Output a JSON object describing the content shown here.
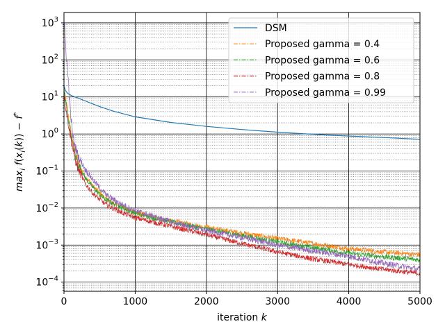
{
  "chart_data": {
    "type": "line",
    "title": "",
    "xlabel_main": "iteration ",
    "xlabel_var": "k",
    "ylabel": "max_i f(x_i(k)) − f*",
    "xlim": [
      0,
      5000
    ],
    "ylim_log10": [
      -4.25,
      3.28
    ],
    "yscale": "log",
    "grid": {
      "major": true,
      "minor_y": true
    },
    "legend_placement": "upper-right",
    "x_ticks": [
      {
        "value": 0,
        "label": "0"
      },
      {
        "value": 1000,
        "label": "1000"
      },
      {
        "value": 2000,
        "label": "2000"
      },
      {
        "value": 3000,
        "label": "3000"
      },
      {
        "value": 4000,
        "label": "4000"
      },
      {
        "value": 5000,
        "label": "5000"
      }
    ],
    "y_ticks": [
      {
        "exp": 3,
        "base": "10",
        "sup": "3"
      },
      {
        "exp": 2,
        "base": "10",
        "sup": "2"
      },
      {
        "exp": 1,
        "base": "10",
        "sup": "1"
      },
      {
        "exp": 0,
        "base": "10",
        "sup": "0"
      },
      {
        "exp": -1,
        "base": "10",
        "sup": "−1"
      },
      {
        "exp": -2,
        "base": "10",
        "sup": "−2"
      },
      {
        "exp": -3,
        "base": "10",
        "sup": "−3"
      },
      {
        "exp": -4,
        "base": "10",
        "sup": "−4"
      }
    ],
    "series": [
      {
        "name": "DSM",
        "color": "#1f77b4",
        "dash": "solid",
        "x": [
          0,
          20,
          50,
          100,
          150,
          200,
          300,
          400,
          500,
          700,
          1000,
          1500,
          2000,
          2500,
          3000,
          3500,
          4000,
          4500,
          5000
        ],
        "y": [
          20,
          15,
          12.5,
          11,
          10,
          9.3,
          7.8,
          6.5,
          5.5,
          4.1,
          2.9,
          2.05,
          1.6,
          1.32,
          1.12,
          0.98,
          0.88,
          0.8,
          0.72
        ],
        "noise": 0
      },
      {
        "name": "Proposed gamma = 0.4",
        "color": "#ff7f0e",
        "dash": "dashdot",
        "x": [
          0,
          20,
          50,
          100,
          150,
          200,
          300,
          400,
          500,
          600,
          800,
          1000,
          1500,
          2000,
          2500,
          3000,
          3500,
          4000,
          4500,
          5000
        ],
        "y": [
          15,
          9,
          4,
          1.0,
          0.32,
          0.16,
          0.07,
          0.04,
          0.025,
          0.017,
          0.011,
          0.0075,
          0.0045,
          0.003,
          0.0021,
          0.0015,
          0.0011,
          0.0008,
          0.00065,
          0.00055
        ],
        "noise": 0.07
      },
      {
        "name": "Proposed gamma = 0.6",
        "color": "#2ca02c",
        "dash": "dashdot",
        "x": [
          0,
          20,
          50,
          100,
          150,
          200,
          300,
          400,
          500,
          600,
          800,
          1000,
          1500,
          2000,
          2500,
          3000,
          3500,
          4000,
          4500,
          5000
        ],
        "y": [
          15,
          8,
          3.5,
          0.9,
          0.3,
          0.15,
          0.065,
          0.037,
          0.023,
          0.016,
          0.0105,
          0.0072,
          0.0042,
          0.0027,
          0.0018,
          0.0012,
          0.00085,
          0.0006,
          0.00048,
          0.0004
        ],
        "noise": 0.07
      },
      {
        "name": "Proposed gamma = 0.8",
        "color": "#d62728",
        "dash": "dashdot",
        "x": [
          0,
          20,
          50,
          100,
          150,
          200,
          300,
          400,
          500,
          600,
          800,
          1000,
          1500,
          2000,
          2500,
          3000,
          3500,
          4000,
          4500,
          5000
        ],
        "y": [
          12,
          6,
          2.6,
          0.7,
          0.22,
          0.11,
          0.045,
          0.026,
          0.017,
          0.012,
          0.0078,
          0.0055,
          0.0032,
          0.0019,
          0.0011,
          0.00065,
          0.00042,
          0.0003,
          0.00022,
          0.00017
        ],
        "noise": 0.07
      },
      {
        "name": "Proposed gamma = 0.99",
        "color": "#9467bd",
        "dash": "dashdot",
        "x": [
          0,
          10,
          30,
          60,
          90,
          120,
          150,
          200,
          300,
          400,
          500,
          600,
          800,
          1000,
          1500,
          2000,
          2500,
          3000,
          3500,
          4000,
          4500,
          5000
        ],
        "y": [
          900,
          700,
          150,
          30,
          4,
          1.0,
          0.5,
          0.25,
          0.11,
          0.06,
          0.035,
          0.022,
          0.013,
          0.0085,
          0.0042,
          0.0025,
          0.0016,
          0.001,
          0.0007,
          0.0005,
          0.00032,
          0.00022
        ],
        "noise": 0.08
      }
    ]
  }
}
